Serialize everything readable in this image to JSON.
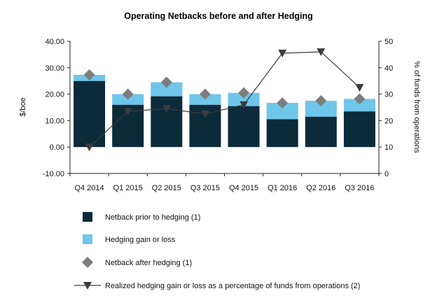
{
  "chart_data": {
    "type": "bar",
    "title": "Operating Netbacks before and after Hedging",
    "ylabel": "$/boe",
    "y2label": "% of funds from operations",
    "ylim": [
      -10,
      40
    ],
    "y2lim": [
      0,
      50
    ],
    "yticks": [
      "-10.00",
      "0.00",
      "10.00",
      "20.00",
      "30.00",
      "40.00"
    ],
    "y2ticks": [
      "0",
      "10",
      "20",
      "30",
      "40",
      "50"
    ],
    "categories": [
      "Q4 2014",
      "Q1 2015",
      "Q2 2015",
      "Q3 2015",
      "Q4 2015",
      "Q1 2016",
      "Q2 2016",
      "Q3 2016"
    ],
    "grid": false,
    "legend_position": "bottom",
    "series": [
      {
        "name": "Netback prior to hedging (1)",
        "kind": "bar-stack",
        "axis": "left",
        "color": "#0b2a3a",
        "values": [
          25.0,
          16.0,
          19.2,
          16.0,
          15.5,
          10.5,
          11.5,
          13.5
        ]
      },
      {
        "name": "Hedging gain or loss",
        "kind": "bar-stack",
        "axis": "left",
        "color": "#6ec6ea",
        "values": [
          2.3,
          4.0,
          5.3,
          4.0,
          5.0,
          6.2,
          6.0,
          4.7
        ]
      },
      {
        "name": "Netback after hedging (1)",
        "kind": "diamond-marker",
        "axis": "left",
        "color": "#7d7d7d",
        "values": [
          27.3,
          20.0,
          24.5,
          20.0,
          20.5,
          16.7,
          17.5,
          18.2
        ]
      },
      {
        "name": "Realized hedging gain or loss as a percentage of funds from operations (2)",
        "kind": "line-triangle",
        "axis": "right",
        "color": "#3c3c3c",
        "values": [
          10.0,
          23.5,
          24.5,
          22.5,
          26.0,
          45.5,
          46.0,
          32.5
        ]
      }
    ]
  }
}
